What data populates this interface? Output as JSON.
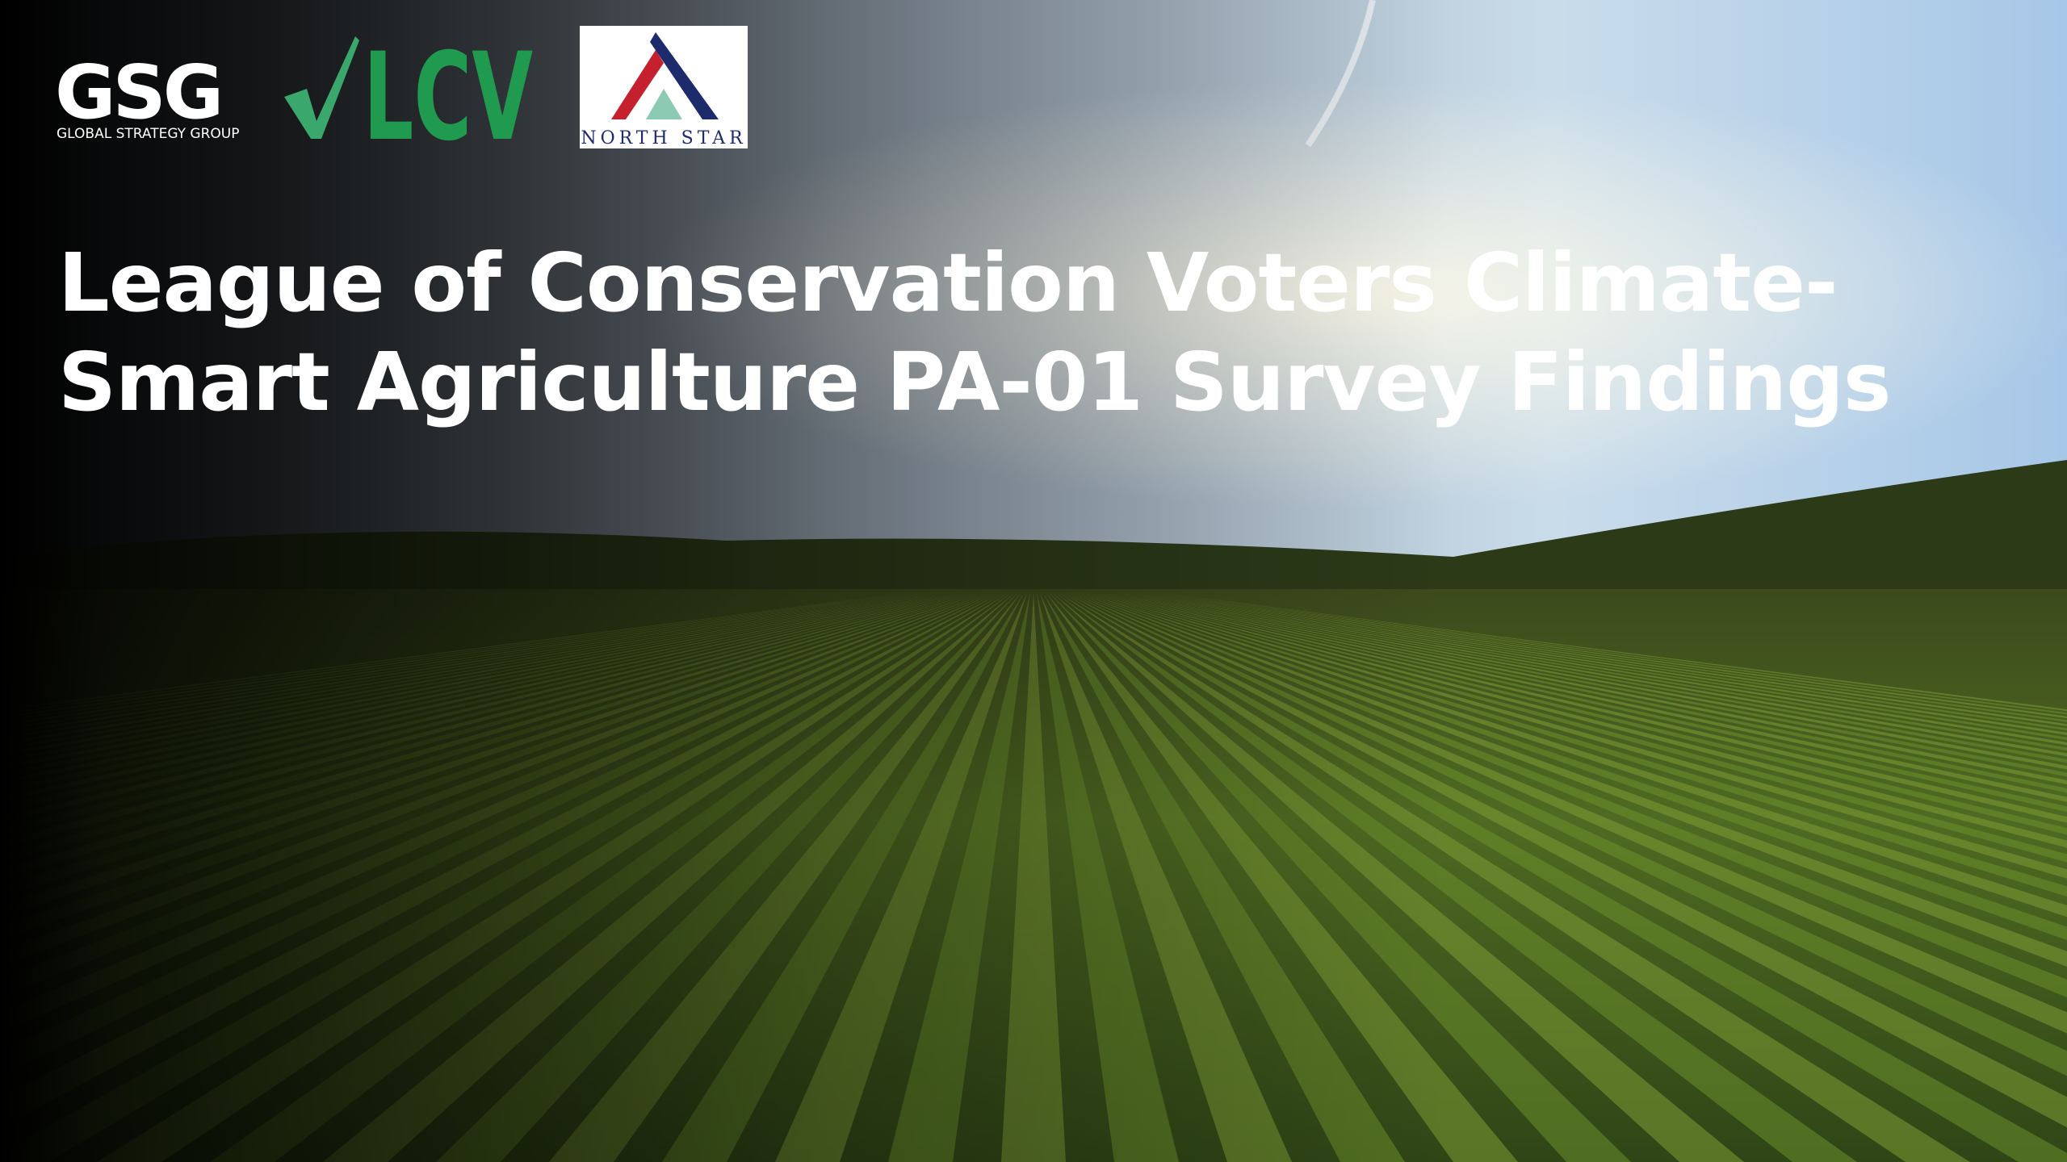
{
  "logos": {
    "gsg": {
      "name": "GSG",
      "tagline": "GLOBAL STRATEGY GROUP"
    },
    "lcv": {
      "name": "LCV"
    },
    "north_star": {
      "name": "NORTH STAR"
    }
  },
  "title": {
    "lines": [
      "League of Conservation Voters Climate-",
      "Smart Agriculture PA-01 Survey Findings"
    ]
  }
}
